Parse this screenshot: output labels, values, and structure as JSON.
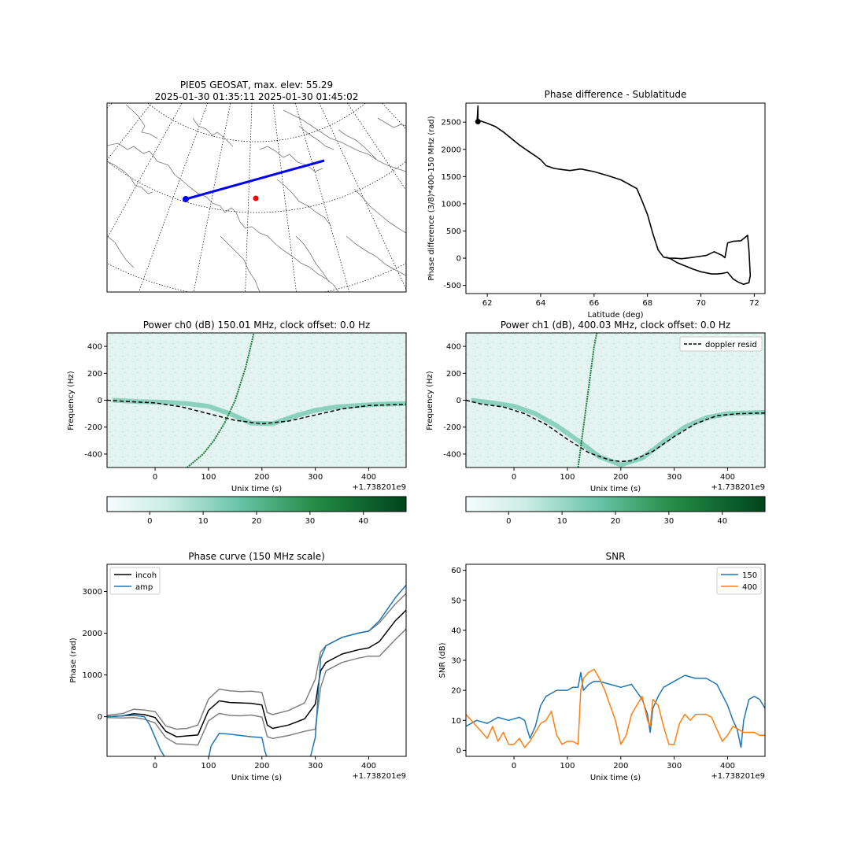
{
  "chart_data": [
    {
      "id": "map",
      "type": "map",
      "title_line1": "PIE05 GEOSAT, max. elev: 55.29",
      "title_line2": "2025-01-30 01:35:11 2025-01-30 01:45:02",
      "track_color": "#0000ff",
      "receiver_color": "#ff0000"
    },
    {
      "id": "phase_lat",
      "type": "line",
      "title": "Phase difference - Sublatitude",
      "xlabel": "Latitude (deg)",
      "ylabel": "Phase difference (3/8)*400-150 MHz (rad)",
      "xlim": [
        61.2,
        72.4
      ],
      "ylim": [
        -650,
        2850
      ],
      "xticks": [
        62,
        64,
        66,
        68,
        70,
        72
      ],
      "yticks": [
        -500,
        0,
        500,
        1000,
        1500,
        2000,
        2500
      ],
      "start_point": [
        61.65,
        2510
      ],
      "series": [
        {
          "color": "#000000",
          "x": [
            61.62,
            61.65,
            61.65,
            61.7,
            62.0,
            62.3,
            62.6,
            62.9,
            63.2,
            63.5,
            63.8,
            64.0,
            64.2,
            64.5,
            64.8,
            65.1,
            65.5,
            66.0,
            66.5,
            67.0,
            67.3,
            67.6,
            67.8,
            68.0,
            68.2,
            68.4,
            68.6,
            68.8,
            69.0,
            69.3,
            69.6,
            69.9,
            70.2,
            70.5,
            70.8,
            70.9,
            71.0,
            71.2,
            71.5,
            71.75,
            71.8,
            71.85,
            71.8,
            71.6,
            71.4,
            71.2,
            71.0,
            70.8,
            70.6,
            70.4,
            70.2,
            70.0,
            69.7,
            69.4,
            69.1,
            68.9,
            68.7
          ],
          "y": [
            2520,
            2800,
            2520,
            2530,
            2480,
            2420,
            2320,
            2200,
            2080,
            1980,
            1880,
            1810,
            1700,
            1650,
            1630,
            1610,
            1640,
            1590,
            1520,
            1440,
            1360,
            1280,
            1050,
            800,
            450,
            150,
            20,
            0,
            0,
            -10,
            10,
            30,
            50,
            120,
            50,
            10,
            280,
            310,
            320,
            420,
            150,
            -320,
            -450,
            -480,
            -440,
            -380,
            -260,
            -280,
            -290,
            -290,
            -270,
            -250,
            -200,
            -140,
            -80,
            -20,
            20
          ]
        }
      ]
    },
    {
      "id": "power_ch0",
      "type": "heatmap",
      "title": "Power ch0 (dB) 150.01 MHz, clock offset: 0.0 Hz",
      "xlabel": "Unix time (s)",
      "ylabel": "Frequency (Hz)",
      "offset_label": "+1.738201e9",
      "xlim": [
        -90,
        470
      ],
      "ylim": [
        -500,
        500
      ],
      "xticks": [
        0,
        100,
        200,
        300,
        400
      ],
      "yticks": [
        -400,
        -200,
        0,
        200,
        400
      ],
      "doppler_resid": {
        "x": [
          -90,
          -50,
          0,
          50,
          100,
          150,
          200,
          250,
          300,
          350,
          400,
          470
        ],
        "y": [
          0,
          -10,
          -20,
          -50,
          -100,
          -150,
          -175,
          -155,
          -110,
          -65,
          -40,
          -30
        ]
      },
      "signal_trace": {
        "x": [
          -80,
          -30,
          20,
          60,
          100,
          140,
          180,
          220,
          260,
          300,
          340,
          380,
          420,
          470
        ],
        "y": [
          0,
          -10,
          -15,
          -25,
          -45,
          -100,
          -170,
          -175,
          -120,
          -75,
          -50,
          -40,
          -30,
          -25
        ]
      },
      "interference_trace": {
        "x": [
          60,
          90,
          110,
          130,
          150,
          170,
          185
        ],
        "y": [
          -500,
          -400,
          -300,
          -170,
          0,
          250,
          500
        ]
      },
      "colorbar": {
        "ticks": [
          0,
          10,
          20,
          30,
          40
        ],
        "range": [
          -8,
          48
        ]
      }
    },
    {
      "id": "power_ch1",
      "type": "heatmap",
      "title": "Power ch1 (dB), 400.03 MHz, clock offset: 0.0 Hz",
      "xlabel": "Unix time (s)",
      "ylabel": "Frequency (Hz)",
      "offset_label": "+1.738201e9",
      "xlim": [
        -90,
        470
      ],
      "ylim": [
        -500,
        500
      ],
      "xticks": [
        0,
        100,
        200,
        300,
        400
      ],
      "yticks": [
        -400,
        -200,
        0,
        200,
        400
      ],
      "legend": "doppler resid",
      "doppler_resid": {
        "x": [
          -90,
          -60,
          -20,
          20,
          60,
          100,
          140,
          180,
          200,
          220,
          260,
          300,
          340,
          380,
          420,
          470
        ],
        "y": [
          0,
          -30,
          -50,
          -100,
          -180,
          -290,
          -390,
          -445,
          -455,
          -450,
          -380,
          -270,
          -175,
          -115,
          -100,
          -95
        ]
      },
      "signal_trace": {
        "x": [
          -80,
          -40,
          0,
          40,
          80,
          120,
          160,
          200,
          240,
          280,
          320,
          360,
          400,
          470
        ],
        "y": [
          0,
          -20,
          -45,
          -100,
          -190,
          -300,
          -420,
          -480,
          -430,
          -310,
          -200,
          -130,
          -100,
          -90
        ]
      },
      "interference_trace": {
        "x": [
          120,
          130,
          140,
          150,
          155
        ],
        "y": [
          -500,
          -200,
          100,
          400,
          500
        ]
      },
      "colorbar": {
        "ticks": [
          0,
          10,
          20,
          30,
          40
        ],
        "range": [
          -8,
          48
        ]
      }
    },
    {
      "id": "phase_curve",
      "type": "line",
      "title": "Phase curve (150 MHz scale)",
      "xlabel": "Unix time (s)",
      "ylabel": "Phase (rad)",
      "offset_label": "+1.738201e9",
      "xlim": [
        -90,
        470
      ],
      "ylim": [
        -950,
        3650
      ],
      "xticks": [
        0,
        100,
        200,
        300,
        400
      ],
      "yticks": [
        0,
        1000,
        2000,
        3000
      ],
      "legend": [
        {
          "name": "incoh",
          "color": "#000000"
        },
        {
          "name": "amp",
          "color": "#1f77b4"
        }
      ],
      "series": [
        {
          "name": "incoh",
          "color": "#000000",
          "x": [
            -90,
            -60,
            -40,
            -20,
            0,
            20,
            40,
            60,
            80,
            100,
            120,
            140,
            160,
            180,
            200,
            210,
            220,
            250,
            280,
            300,
            310,
            320,
            350,
            380,
            400,
            420,
            450,
            470
          ],
          "y": [
            0,
            20,
            70,
            50,
            -20,
            -350,
            -480,
            -460,
            -440,
            150,
            380,
            340,
            330,
            320,
            280,
            -200,
            -280,
            -200,
            -50,
            300,
            1100,
            1300,
            1500,
            1600,
            1650,
            1800,
            2300,
            2550
          ]
        },
        {
          "name": "upper",
          "color": "#808080",
          "x": [
            -90,
            -60,
            -40,
            -20,
            0,
            20,
            40,
            60,
            80,
            100,
            120,
            140,
            160,
            180,
            200,
            210,
            220,
            250,
            280,
            300,
            310,
            320,
            350,
            380,
            400,
            420,
            450,
            470
          ],
          "y": [
            30,
            80,
            180,
            160,
            120,
            -220,
            -300,
            -280,
            -200,
            420,
            660,
            620,
            600,
            610,
            580,
            100,
            50,
            150,
            330,
            900,
            1550,
            1700,
            1900,
            2000,
            2050,
            2250,
            2700,
            2950
          ]
        },
        {
          "name": "lower",
          "color": "#808080",
          "x": [
            -90,
            -60,
            -40,
            -20,
            0,
            20,
            40,
            60,
            80,
            100,
            120,
            140,
            160,
            180,
            200,
            210,
            220,
            250,
            280,
            300,
            310,
            320,
            350,
            380,
            400,
            420,
            450,
            470
          ],
          "y": [
            -20,
            -30,
            -20,
            -60,
            -150,
            -500,
            -650,
            -660,
            -680,
            -100,
            80,
            30,
            20,
            40,
            -10,
            -480,
            -520,
            -450,
            -350,
            -300,
            700,
            1100,
            1300,
            1400,
            1450,
            1450,
            1850,
            2100
          ]
        },
        {
          "name": "amp",
          "color": "#1f77b4",
          "x": [
            -90,
            -60,
            -40,
            -20,
            -10,
            0,
            10,
            20,
            100,
            105,
            120,
            140,
            160,
            180,
            200,
            205,
            210,
            290,
            300,
            310,
            320,
            350,
            380,
            400,
            420,
            450,
            470
          ],
          "y": [
            0,
            20,
            30,
            0,
            -200,
            -500,
            -800,
            -1000,
            -1000,
            -700,
            -400,
            -420,
            -450,
            -480,
            -500,
            -800,
            -1000,
            -1000,
            -500,
            1400,
            1700,
            1900,
            2000,
            2050,
            2300,
            2850,
            3150
          ]
        }
      ]
    },
    {
      "id": "snr",
      "type": "line",
      "title": "SNR",
      "xlabel": "Unix time (s)",
      "ylabel": "SNR (dB)",
      "offset_label": "+1.738201e9",
      "xlim": [
        -90,
        470
      ],
      "ylim": [
        -2,
        62
      ],
      "xticks": [
        0,
        100,
        200,
        300,
        400
      ],
      "yticks": [
        0,
        10,
        20,
        30,
        40,
        50,
        60
      ],
      "legend": [
        {
          "name": "150",
          "color": "#1f77b4"
        },
        {
          "name": "400",
          "color": "#ff7f0e"
        }
      ],
      "series": [
        {
          "name": "150",
          "color": "#1f77b4",
          "x": [
            -90,
            -70,
            -50,
            -30,
            -10,
            10,
            20,
            30,
            40,
            50,
            60,
            70,
            80,
            100,
            110,
            120,
            125,
            130,
            140,
            150,
            160,
            180,
            200,
            220,
            240,
            250,
            255,
            260,
            270,
            280,
            300,
            320,
            340,
            360,
            380,
            400,
            410,
            418,
            425,
            430,
            440,
            450,
            460,
            470
          ],
          "y": [
            8,
            10,
            9,
            11,
            10,
            11,
            10,
            4,
            8,
            15,
            18,
            19,
            20,
            20,
            21,
            21,
            26,
            20,
            22,
            23,
            23,
            22,
            21,
            22,
            17,
            12,
            6,
            14,
            18,
            21,
            23,
            25,
            24,
            24,
            22,
            15,
            10,
            7,
            1,
            10,
            17,
            18,
            17,
            14
          ]
        },
        {
          "name": "400",
          "color": "#ff7f0e",
          "x": [
            -90,
            -80,
            -70,
            -60,
            -50,
            -40,
            -30,
            -20,
            -10,
            0,
            10,
            20,
            30,
            40,
            50,
            60,
            70,
            80,
            90,
            100,
            110,
            120,
            125,
            130,
            140,
            150,
            160,
            170,
            180,
            190,
            200,
            210,
            220,
            230,
            240,
            250,
            255,
            260,
            270,
            280,
            290,
            300,
            310,
            320,
            330,
            340,
            350,
            360,
            370,
            380,
            390,
            400,
            410,
            420,
            430,
            440,
            450,
            460,
            470
          ],
          "y": [
            12,
            10,
            8,
            6,
            4,
            8,
            3,
            6,
            2,
            2,
            4,
            1,
            3,
            6,
            9,
            10,
            13,
            5,
            2,
            3,
            3,
            2,
            20,
            24,
            26,
            27,
            24,
            20,
            15,
            10,
            2,
            5,
            12,
            15,
            18,
            10,
            8,
            17,
            15,
            8,
            2,
            2,
            9,
            12,
            10,
            12,
            12,
            12,
            11,
            7,
            3,
            5,
            8,
            7,
            6,
            6,
            6,
            5,
            5
          ]
        }
      ]
    }
  ]
}
